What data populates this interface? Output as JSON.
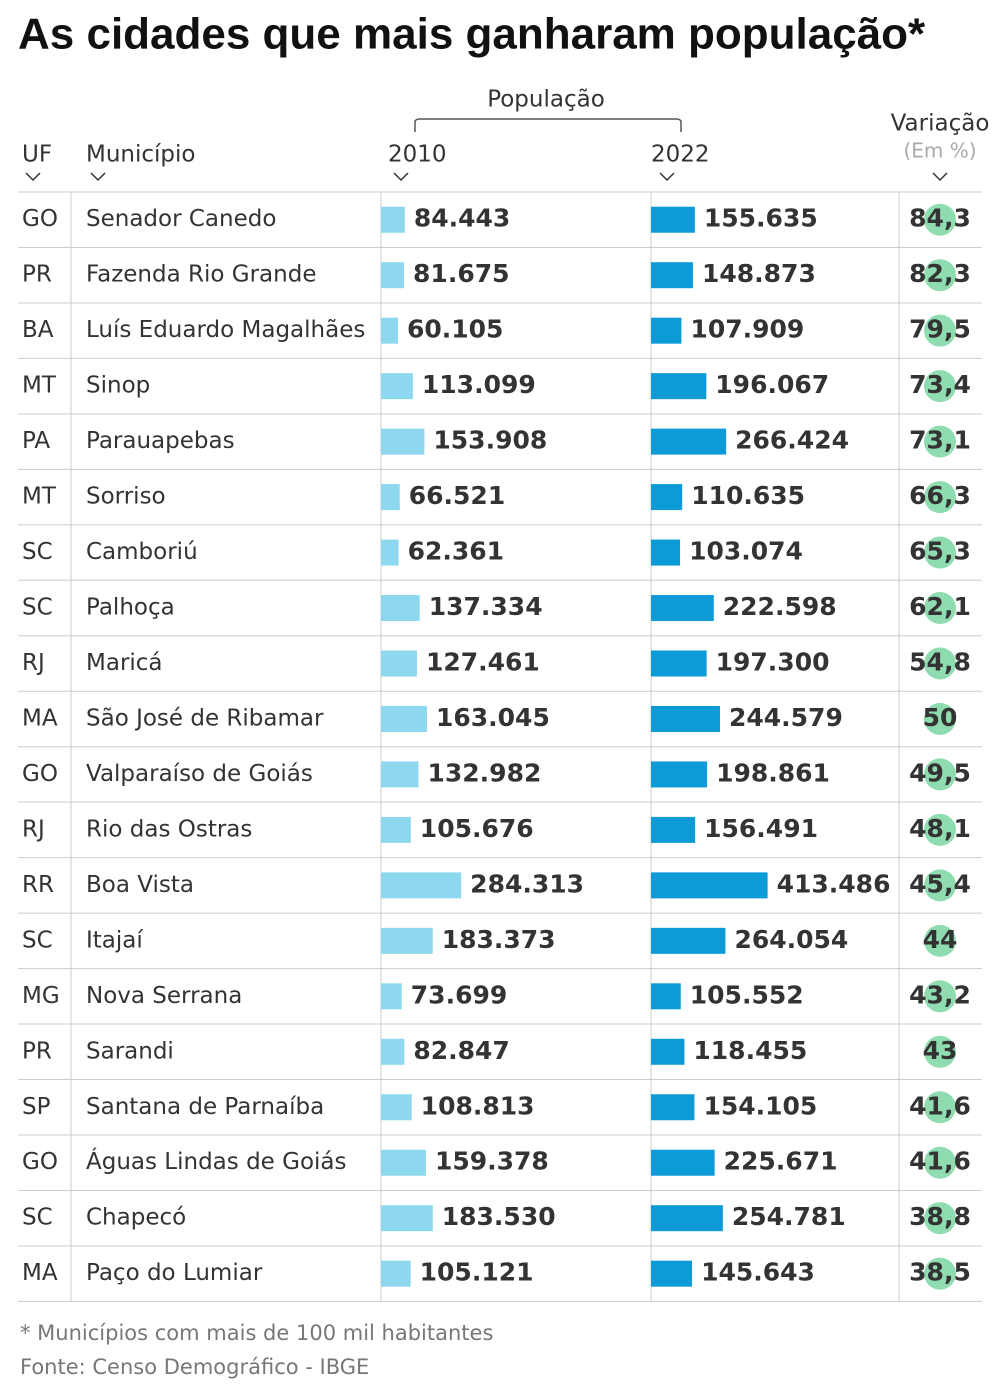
{
  "chart_data": {
    "type": "bar-table",
    "title": "As cidades que mais ganharam população*",
    "group_label": "População",
    "uf_header": "UF",
    "municipio_header": "Município",
    "variation_header": "Variação",
    "variation_unit": "(Em %)",
    "uf": [
      "GO",
      "PR",
      "BA",
      "MT",
      "PA",
      "MT",
      "SC",
      "SC",
      "RJ",
      "MA",
      "GO",
      "RJ",
      "RR",
      "SC",
      "MG",
      "PR",
      "SP",
      "GO",
      "SC",
      "MA"
    ],
    "categories": [
      "Senador Canedo",
      "Fazenda Rio Grande",
      "Luís Eduardo Magalhães",
      "Sinop",
      "Parauapebas",
      "Sorriso",
      "Camboriú",
      "Palhoça",
      "Maricá",
      "São José de Ribamar",
      "Valparaíso de Goiás",
      "Rio das Ostras",
      "Boa Vista",
      "Itajaí",
      "Nova Serrana",
      "Sarandi",
      "Santana de Parnaíba",
      "Águas Lindas de Goiás",
      "Chapecó",
      "Paço do Lumiar"
    ],
    "series": [
      {
        "name": "2010",
        "color": "#8dd8ee",
        "values": [
          84443,
          81675,
          60105,
          113099,
          153908,
          66521,
          62361,
          137334,
          127461,
          163045,
          132982,
          105676,
          284313,
          183373,
          73699,
          82847,
          108813,
          159378,
          183530,
          105121
        ],
        "value_labels": [
          "84.443",
          "81.675",
          "60.105",
          "113.099",
          "153.908",
          "66.521",
          "62.361",
          "137.334",
          "127.461",
          "163.045",
          "132.982",
          "105.676",
          "284.313",
          "183.373",
          "73.699",
          "82.847",
          "108.813",
          "159.378",
          "183.530",
          "105.121"
        ]
      },
      {
        "name": "2022",
        "color": "#0d9bd7",
        "values": [
          155635,
          148873,
          107909,
          196067,
          266424,
          110635,
          103074,
          222598,
          197300,
          244579,
          198861,
          156491,
          413486,
          264054,
          105552,
          118455,
          154105,
          225671,
          254781,
          145643
        ],
        "value_labels": [
          "155.635",
          "148.873",
          "107.909",
          "196.067",
          "266.424",
          "110.635",
          "103.074",
          "222.598",
          "197.300",
          "244.579",
          "198.861",
          "156.491",
          "413.486",
          "264.054",
          "105.552",
          "118.455",
          "154.105",
          "225.671",
          "254.781",
          "145.643"
        ]
      }
    ],
    "variation": {
      "color": "#8fdcb0",
      "values": [
        84.3,
        82.3,
        79.5,
        73.4,
        73.1,
        66.3,
        65.3,
        62.1,
        54.8,
        50,
        49.5,
        48.1,
        45.4,
        44,
        43.2,
        43,
        41.6,
        41.6,
        38.8,
        38.5
      ],
      "value_labels": [
        "84,3",
        "82,3",
        "79,5",
        "73,4",
        "73,1",
        "66,3",
        "65,3",
        "62,1",
        "54,8",
        "50",
        "49,5",
        "48,1",
        "45,4",
        "44",
        "43,2",
        "43",
        "41,6",
        "41,6",
        "38,8",
        "38,5"
      ]
    },
    "notes": [
      "* Municípios com mais de 100 mil habitantes",
      "Fonte: Censo Demográfico - IBGE"
    ]
  }
}
